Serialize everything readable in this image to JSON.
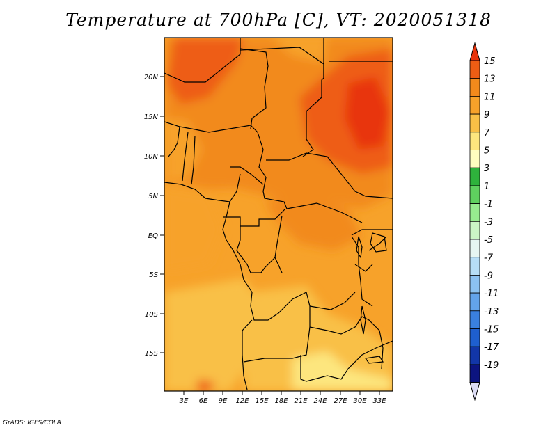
{
  "title": "Temperature at 700hPa [C], VT: 2020051318",
  "credit": "GrADS: IGES/COLA",
  "map": {
    "lat_labels": [
      "20N",
      "15N",
      "10N",
      "5N",
      "EQ",
      "5S",
      "10S",
      "15S"
    ],
    "lon_labels": [
      "3E",
      "6E",
      "9E",
      "12E",
      "15E",
      "18E",
      "21E",
      "24E",
      "27E",
      "30E",
      "33E"
    ]
  },
  "colorbar": {
    "labels": [
      "15",
      "13",
      "11",
      "9",
      "7",
      "5",
      "3",
      "1",
      "-1",
      "-3",
      "-5",
      "-7",
      "-9",
      "-11",
      "-13",
      "-15",
      "-17",
      "-19"
    ],
    "colors": [
      "#e8340c",
      "#ee5d14",
      "#f28a1c",
      "#f7a22a",
      "#f9c046",
      "#fde67e",
      "#fffdc0",
      "#2eb23c",
      "#5fd05f",
      "#97eb8f",
      "#cbf5c6",
      "#e6f6f2",
      "#b6def6",
      "#8cc2f1",
      "#63a3ea",
      "#3a80de",
      "#1e5fcf",
      "#1236a8",
      "#0c1480",
      "#dcdcf4"
    ]
  }
}
